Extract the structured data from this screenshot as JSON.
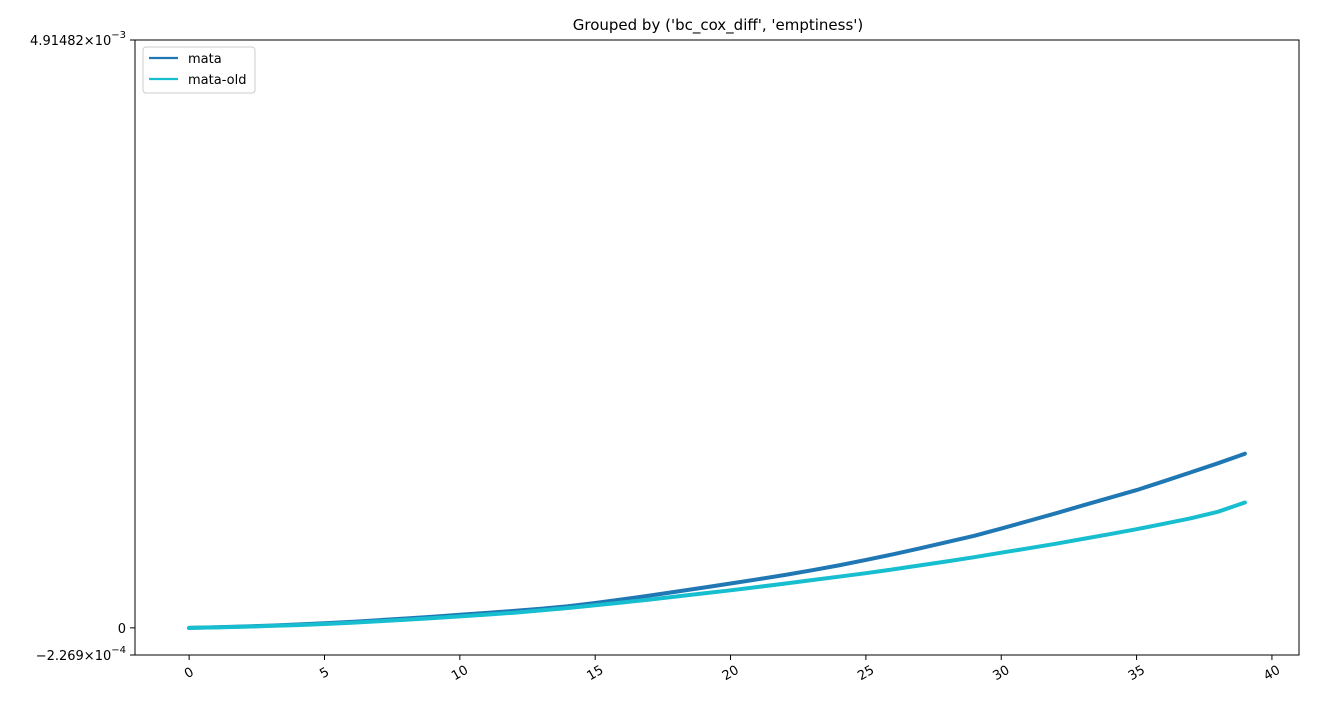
{
  "chart_data": {
    "type": "line",
    "title": "Grouped by ('bc_cox_diff', 'emptiness')",
    "xlabel": "",
    "ylabel": "",
    "xlim": [
      -2,
      41
    ],
    "ylim": [
      -0.0002269,
      0.00491482
    ],
    "x_ticks": [
      0,
      5,
      10,
      15,
      20,
      25,
      30,
      35,
      40
    ],
    "y_ticks": [
      {
        "value": -0.0002269,
        "mantissa": "−2.269",
        "base": "10",
        "exp": "−4"
      },
      {
        "value": 0,
        "label": "0"
      },
      {
        "value": 0.00491482,
        "mantissa": "4.91482",
        "base": "10",
        "exp": "−3"
      }
    ],
    "grid": false,
    "legend_position": "upper-left",
    "x": [
      0,
      1,
      2,
      3,
      4,
      5,
      6,
      7,
      8,
      9,
      10,
      11,
      12,
      13,
      14,
      15,
      16,
      17,
      18,
      19,
      20,
      21,
      22,
      23,
      24,
      25,
      26,
      27,
      28,
      29,
      30,
      31,
      32,
      33,
      34,
      35,
      36,
      37,
      38,
      39
    ],
    "series": [
      {
        "name": "mata",
        "color": "#1f77b4",
        "values": [
          0.0,
          5e-06,
          1.1e-05,
          1.9e-05,
          2.8e-05,
          3.8e-05,
          5e-05,
          6.4e-05,
          7.8e-05,
          9.3e-05,
          0.000109,
          0.000125,
          0.000142,
          0.00016,
          0.000181,
          0.000208,
          0.000238,
          0.00027,
          0.000303,
          0.000337,
          0.000371,
          0.000406,
          0.000442,
          0.000481,
          0.000522,
          0.000568,
          0.000615,
          0.000665,
          0.000717,
          0.00077,
          0.00083,
          0.000893,
          0.000957,
          0.001022,
          0.001087,
          0.001152,
          0.001225,
          0.0013,
          0.001376,
          0.001456
        ]
      },
      {
        "name": "mata-old",
        "color": "#17becf",
        "values": [
          0.0,
          4e-06,
          9e-06,
          1.6e-05,
          2.3e-05,
          3.2e-05,
          4.3e-05,
          5.5e-05,
          6.8e-05,
          8.2e-05,
          9.6e-05,
          0.000111,
          0.000127,
          0.000146,
          0.000166,
          0.000189,
          0.000212,
          0.000236,
          0.000262,
          0.000288,
          0.000314,
          0.000342,
          0.00037,
          0.000399,
          0.000428,
          0.000457,
          0.000489,
          0.000522,
          0.000556,
          0.000591,
          0.000628,
          0.000665,
          0.000703,
          0.000743,
          0.000783,
          0.000825,
          0.00087,
          0.000916,
          0.00097,
          0.001048
        ]
      }
    ]
  }
}
